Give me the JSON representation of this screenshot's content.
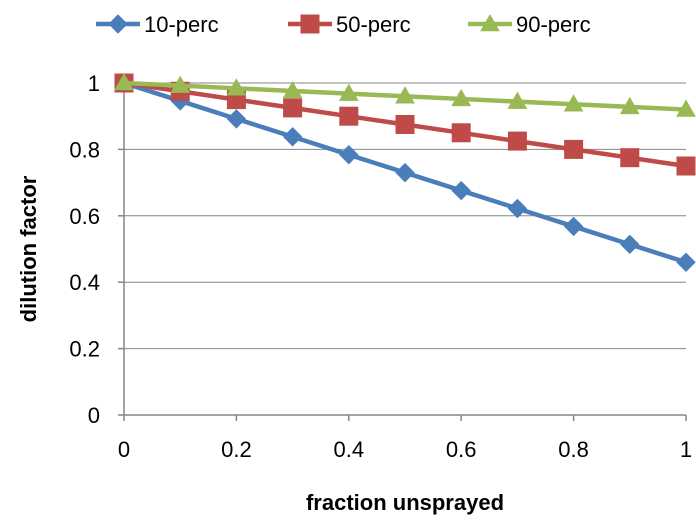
{
  "chart_data": {
    "type": "line",
    "title": "",
    "xlabel": "fraction unsprayed",
    "ylabel": "dilution factor",
    "x": [
      0,
      0.1,
      0.2,
      0.3,
      0.4,
      0.5,
      0.6,
      0.7,
      0.8,
      0.9,
      1
    ],
    "xlim": [
      0,
      1
    ],
    "ylim": [
      0,
      1
    ],
    "x_ticks": [
      0,
      0.2,
      0.4,
      0.6,
      0.8,
      1
    ],
    "x_tick_labels": [
      "0",
      "0.2",
      "0.4",
      "0.6",
      "0.8",
      "1"
    ],
    "y_ticks": [
      0,
      0.2,
      0.4,
      0.6,
      0.8,
      1
    ],
    "y_tick_labels": [
      "0",
      "0.2",
      "0.4",
      "0.6",
      "0.8",
      "1"
    ],
    "grid": "horizontal",
    "legend_position": "top",
    "series": [
      {
        "name": "10-perc",
        "color": "#4a7ebb",
        "marker": "diamond",
        "values": [
          1.0,
          0.946,
          0.892,
          0.838,
          0.784,
          0.73,
          0.676,
          0.622,
          0.568,
          0.514,
          0.46
        ]
      },
      {
        "name": "50-perc",
        "color": "#be4b48",
        "marker": "square",
        "values": [
          1.0,
          0.975,
          0.95,
          0.925,
          0.9,
          0.875,
          0.85,
          0.825,
          0.8,
          0.775,
          0.75
        ]
      },
      {
        "name": "90-perc",
        "color": "#98b954",
        "marker": "triangle",
        "values": [
          1.0,
          0.992,
          0.984,
          0.976,
          0.968,
          0.96,
          0.952,
          0.944,
          0.936,
          0.928,
          0.92
        ]
      }
    ]
  }
}
